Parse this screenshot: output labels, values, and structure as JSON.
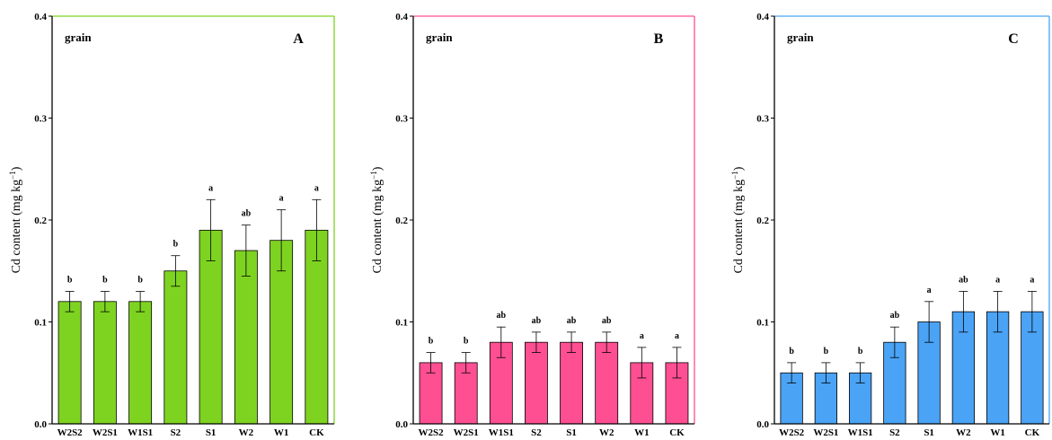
{
  "chart_data": [
    {
      "type": "bar",
      "panel_label": "A",
      "annotation": "grain",
      "ylabel": "Cd content (mg kg⁻¹)",
      "ylabel_main": "Cd content (mg kg",
      "ylabel_sup": "−1",
      "ylabel_close": ")",
      "ylim": [
        0,
        0.4
      ],
      "yticks": [
        "0.0",
        "0.1",
        "0.2",
        "0.3",
        "0.4"
      ],
      "categories": [
        "W2S2",
        "W2S1",
        "W1S1",
        "S2",
        "S1",
        "W2",
        "W1",
        "CK"
      ],
      "values": [
        0.12,
        0.12,
        0.12,
        0.15,
        0.19,
        0.17,
        0.18,
        0.19
      ],
      "errors": [
        0.01,
        0.01,
        0.01,
        0.015,
        0.03,
        0.025,
        0.03,
        0.03
      ],
      "significance": [
        "b",
        "b",
        "b",
        "b",
        "a",
        "ab",
        "a",
        "a"
      ],
      "bar_color": "#7ed321",
      "frame_color": "#7ed321"
    },
    {
      "type": "bar",
      "panel_label": "B",
      "annotation": "grain",
      "ylabel": "Cd content (mg kg⁻¹)",
      "ylabel_main": "Cd content (mg kg",
      "ylabel_sup": "−1",
      "ylabel_close": ")",
      "ylim": [
        0,
        0.4
      ],
      "yticks": [
        "0.0",
        "0.1",
        "0.2",
        "0.3",
        "0.4"
      ],
      "categories": [
        "W2S2",
        "W2S1",
        "W1S1",
        "S2",
        "S1",
        "W2",
        "W1",
        "CK"
      ],
      "values": [
        0.06,
        0.06,
        0.08,
        0.08,
        0.08,
        0.08,
        0.06,
        0.06
      ],
      "errors": [
        0.01,
        0.01,
        0.015,
        0.01,
        0.01,
        0.01,
        0.015,
        0.015
      ],
      "significance": [
        "b",
        "b",
        "ab",
        "ab",
        "ab",
        "ab",
        "a",
        "a"
      ],
      "bar_color": "#ff4f93",
      "frame_color": "#ff4f93"
    },
    {
      "type": "bar",
      "panel_label": "C",
      "annotation": "grain",
      "ylabel": "Cd content (mg kg⁻¹)",
      "ylabel_main": "Cd content (mg kg",
      "ylabel_sup": "−1",
      "ylabel_close": ")",
      "ylim": [
        0,
        0.4
      ],
      "yticks": [
        "0.0",
        "0.1",
        "0.2",
        "0.3",
        "0.4"
      ],
      "categories": [
        "W2S2",
        "W2S1",
        "W1S1",
        "S2",
        "S1",
        "W2",
        "W1",
        "CK"
      ],
      "values": [
        0.05,
        0.05,
        0.05,
        0.08,
        0.1,
        0.11,
        0.11,
        0.11
      ],
      "errors": [
        0.01,
        0.01,
        0.01,
        0.015,
        0.02,
        0.02,
        0.02,
        0.02
      ],
      "significance": [
        "b",
        "b",
        "b",
        "ab",
        "a",
        "ab",
        "a",
        "a"
      ],
      "bar_color": "#4aa3f5",
      "frame_color": "#4aa3f5"
    }
  ]
}
